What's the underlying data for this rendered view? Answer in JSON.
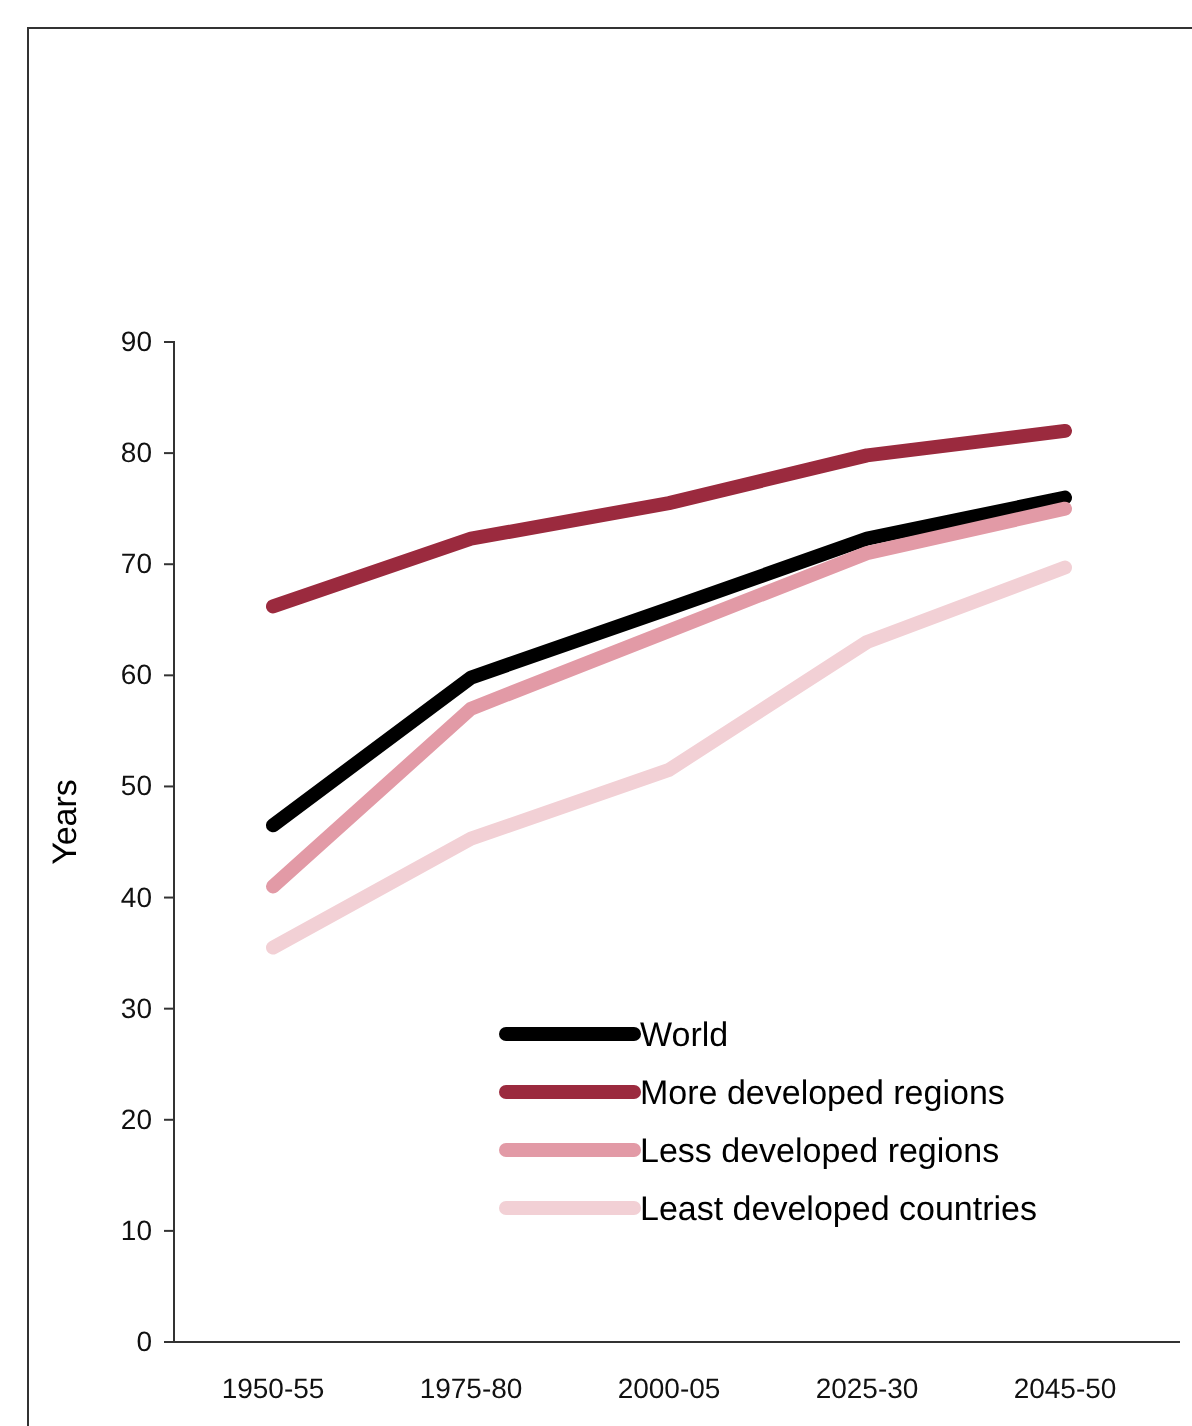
{
  "chart_data": {
    "type": "line",
    "ylabel": "Years",
    "categories": [
      "1950-55",
      "1975-80",
      "2000-05",
      "2025-30",
      "2045-50"
    ],
    "series": [
      {
        "name": "World",
        "color": "#000000",
        "values": [
          46.5,
          59.8,
          66,
          72.3,
          76
        ]
      },
      {
        "name": "More developed regions",
        "color": "#9b2a3e",
        "values": [
          66.2,
          72.3,
          75.5,
          79.8,
          82
        ]
      },
      {
        "name": "Less developed regions",
        "color": "#e29aa6",
        "values": [
          41,
          57,
          64,
          71,
          75
        ]
      },
      {
        "name": "Least developed countries",
        "color": "#f2d0d5",
        "values": [
          35.5,
          45.3,
          51.5,
          63,
          69.7
        ]
      }
    ],
    "ylim": [
      0,
      90
    ],
    "yticks": [
      0,
      10,
      20,
      30,
      40,
      50,
      60,
      70,
      80,
      90
    ],
    "legend": "bottom right",
    "grid": false,
    "marker": "none",
    "line_style": "solid"
  }
}
